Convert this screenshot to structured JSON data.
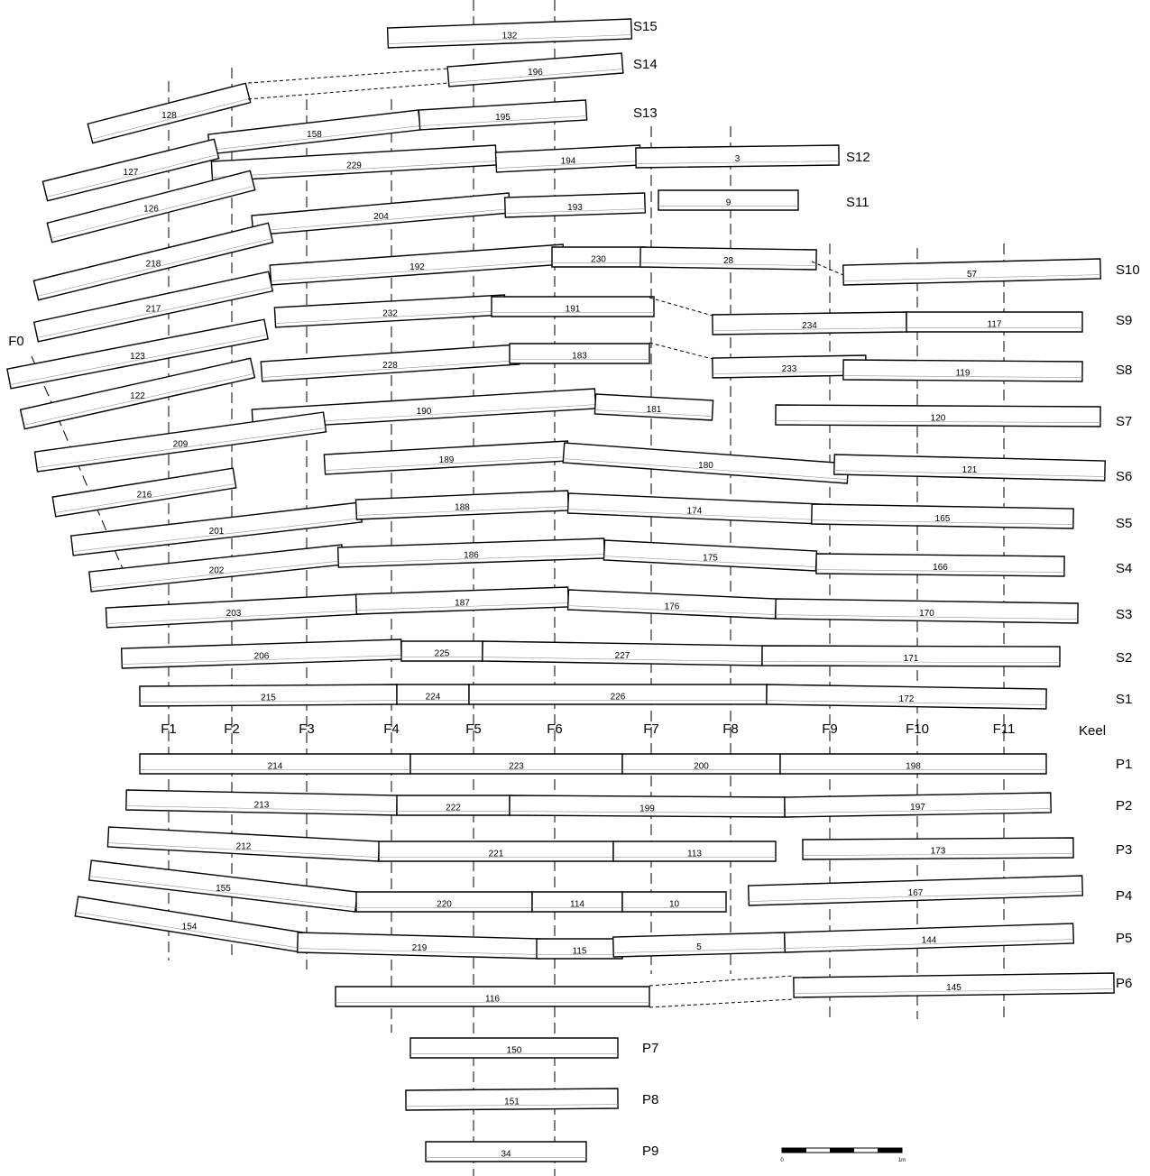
{
  "strakes": [
    {
      "label": "S15",
      "planks": [
        "132"
      ]
    },
    {
      "label": "S14",
      "planks": [
        "196"
      ]
    },
    {
      "label": "S13",
      "planks": [
        "128",
        "158",
        "195"
      ]
    },
    {
      "label": "S12",
      "planks": [
        "127",
        "229",
        "194",
        "3"
      ]
    },
    {
      "label": "S11",
      "planks": [
        "126",
        "204",
        "193",
        "9"
      ]
    },
    {
      "label": "S10",
      "planks": [
        "218",
        "192",
        "230",
        "28",
        "57"
      ]
    },
    {
      "label": "S9",
      "planks": [
        "217",
        "232",
        "191",
        "234",
        "117"
      ]
    },
    {
      "label": "S8",
      "planks": [
        "123",
        "228",
        "183",
        "233",
        "119"
      ]
    },
    {
      "label": "S7",
      "planks": [
        "122",
        "190",
        "181",
        "120"
      ]
    },
    {
      "label": "S6",
      "planks": [
        "209",
        "189",
        "180",
        "121"
      ]
    },
    {
      "label": "S5",
      "planks": [
        "216",
        "201",
        "188",
        "174",
        "165"
      ]
    },
    {
      "label": "S4",
      "planks": [
        "202",
        "186",
        "175",
        "166"
      ]
    },
    {
      "label": "S3",
      "planks": [
        "203",
        "187",
        "176",
        "170"
      ]
    },
    {
      "label": "S2",
      "planks": [
        "206",
        "225",
        "227",
        "171"
      ]
    },
    {
      "label": "S1",
      "planks": [
        "215",
        "224",
        "226",
        "172"
      ]
    },
    {
      "label": "P1",
      "planks": [
        "214",
        "223",
        "200",
        "198"
      ]
    },
    {
      "label": "P2",
      "planks": [
        "213",
        "222",
        "199",
        "197"
      ]
    },
    {
      "label": "P3",
      "planks": [
        "212",
        "221",
        "113",
        "173"
      ]
    },
    {
      "label": "P4",
      "planks": [
        "155",
        "220",
        "114",
        "10",
        "167"
      ]
    },
    {
      "label": "P5",
      "planks": [
        "154",
        "219",
        "115",
        "5",
        "144"
      ]
    },
    {
      "label": "P6",
      "planks": [
        "116",
        "145"
      ]
    },
    {
      "label": "P7",
      "planks": [
        "150"
      ]
    },
    {
      "label": "P8",
      "planks": [
        "151"
      ]
    },
    {
      "label": "P9",
      "planks": [
        "34"
      ]
    }
  ],
  "keel": "Keel",
  "frames": [
    "F0",
    "F1",
    "F2",
    "F3",
    "F4",
    "F5",
    "F6",
    "F7",
    "F8",
    "F9",
    "F10",
    "F11"
  ],
  "scale_bar": {
    "start": "0",
    "end": "1m"
  }
}
